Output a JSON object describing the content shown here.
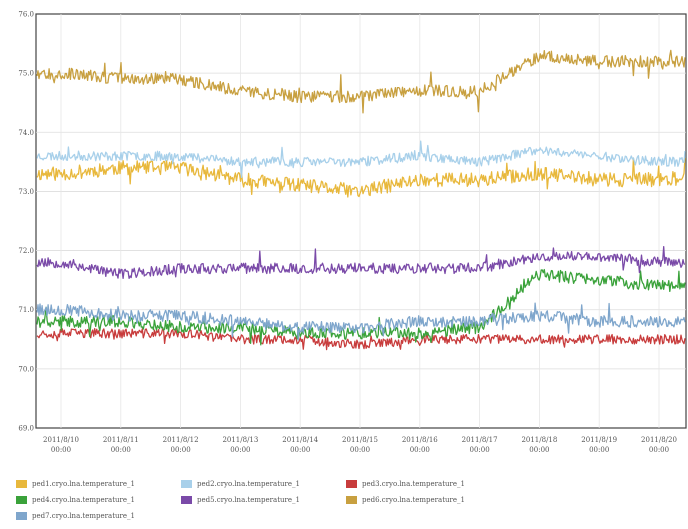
{
  "chart_data": {
    "type": "line",
    "ylim": [
      69.0,
      76.0
    ],
    "yticks": [
      "76.0",
      "75.0",
      "74.0",
      "73.0",
      "72.0",
      "71.0",
      "70.0",
      "69.0"
    ],
    "x_labels": [
      {
        "date": "2011/8/10",
        "time": "00:00"
      },
      {
        "date": "2011/8/11",
        "time": "00:00"
      },
      {
        "date": "2011/8/12",
        "time": "00:00"
      },
      {
        "date": "2011/8/13",
        "time": "00:00"
      },
      {
        "date": "2011/8/14",
        "time": "00:00"
      },
      {
        "date": "2011/8/15",
        "time": "00:00"
      },
      {
        "date": "2011/8/16",
        "time": "00:00"
      },
      {
        "date": "2011/8/17",
        "time": "00:00"
      },
      {
        "date": "2011/8/18",
        "time": "00:00"
      },
      {
        "date": "2011/8/19",
        "time": "00:00"
      },
      {
        "date": "2011/8/20",
        "time": "00:00"
      }
    ],
    "grid": true,
    "legend_position": "bottom",
    "series": [
      {
        "name": "ped1.cryo.lna.temperature_1",
        "color": "#e8b83c",
        "baseline": [
          73.3,
          73.4,
          73.4,
          73.2,
          73.1,
          73.0,
          73.2,
          73.2,
          73.3,
          73.2,
          73.2
        ],
        "noise": 0.12,
        "seed": 11
      },
      {
        "name": "ped2.cryo.lna.temperature_1",
        "color": "#a8d0ea",
        "baseline": [
          73.6,
          73.6,
          73.6,
          73.5,
          73.5,
          73.5,
          73.6,
          73.5,
          73.7,
          73.6,
          73.5
        ],
        "noise": 0.08,
        "seed": 23
      },
      {
        "name": "ped3.cryo.lna.temperature_1",
        "color": "#c83c3c",
        "baseline": [
          70.6,
          70.6,
          70.6,
          70.5,
          70.5,
          70.4,
          70.5,
          70.5,
          70.5,
          70.5,
          70.5
        ],
        "noise": 0.08,
        "seed": 37
      },
      {
        "name": "ped4.cryo.lna.temperature_1",
        "color": "#3aa23a",
        "baseline": [
          70.8,
          70.8,
          70.7,
          70.7,
          70.6,
          70.6,
          70.6,
          70.7,
          71.6,
          71.5,
          71.4
        ],
        "noise": 0.1,
        "seed": 41
      },
      {
        "name": "ped5.cryo.lna.temperature_1",
        "color": "#7a4aa8",
        "baseline": [
          71.8,
          71.6,
          71.7,
          71.7,
          71.7,
          71.7,
          71.7,
          71.7,
          71.9,
          71.9,
          71.8
        ],
        "noise": 0.09,
        "seed": 53
      },
      {
        "name": "ped6.cryo.lna.temperature_1",
        "color": "#c8a040",
        "baseline": [
          75.0,
          74.9,
          74.9,
          74.7,
          74.6,
          74.6,
          74.7,
          74.7,
          75.3,
          75.2,
          75.2
        ],
        "noise": 0.1,
        "seed": 67
      },
      {
        "name": "ped7.cryo.lna.temperature_1",
        "color": "#7fa6cc",
        "baseline": [
          71.0,
          70.9,
          70.9,
          70.8,
          70.7,
          70.7,
          70.8,
          70.8,
          70.9,
          70.8,
          70.8
        ],
        "noise": 0.1,
        "seed": 79
      }
    ]
  }
}
